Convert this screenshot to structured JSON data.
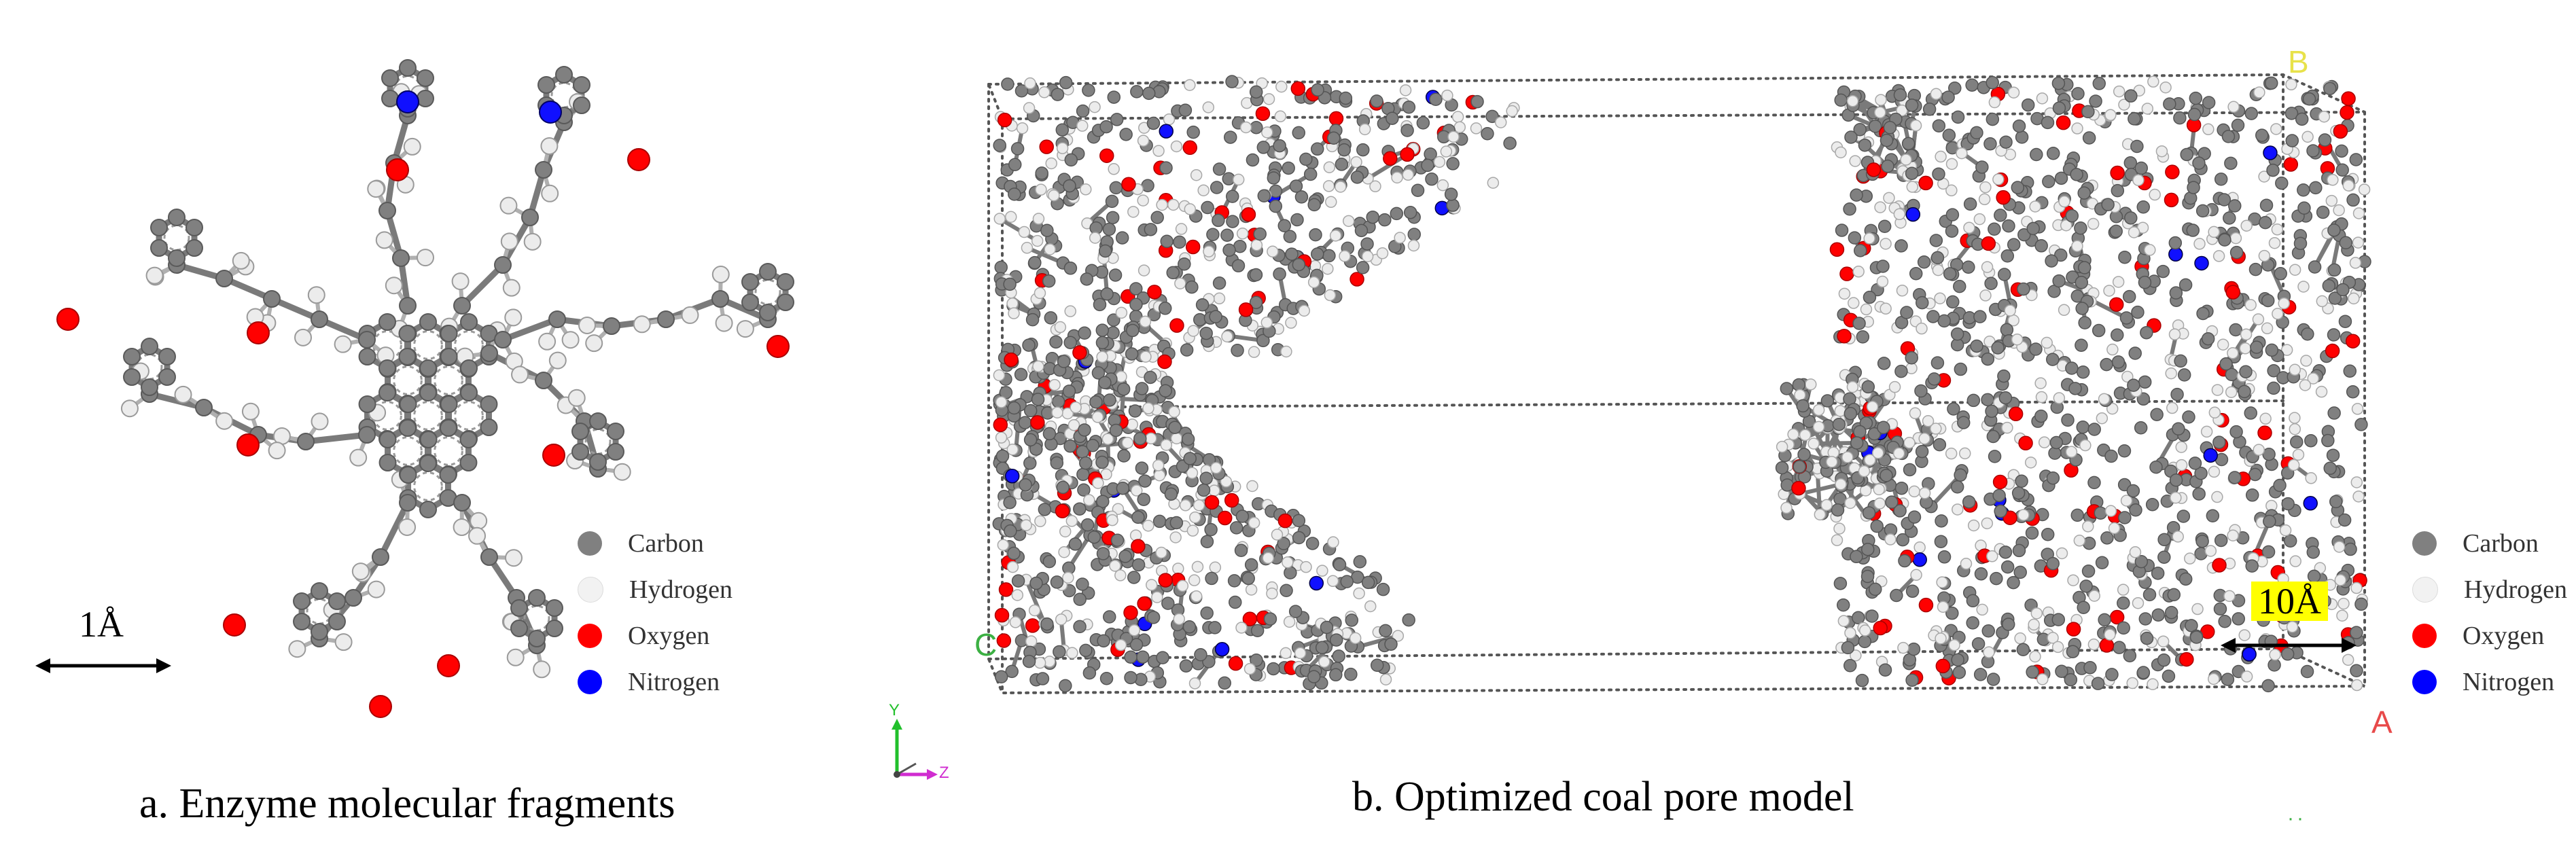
{
  "panel_a": {
    "caption": "a. Enzyme molecular fragments",
    "scale_label": "1Å"
  },
  "panel_b": {
    "caption": "b. Optimized coal pore model",
    "scale_label": "10Å",
    "corner_labels": {
      "top_right": "B",
      "bottom_right": "A",
      "left": "C"
    },
    "axis_labels": {
      "y": "Y",
      "z": "Z"
    }
  },
  "legend": [
    {
      "label": "Carbon",
      "color": "#808080"
    },
    {
      "label": "Hydrogen",
      "color": "#f2f2f2"
    },
    {
      "label": "Oxygen",
      "color": "#ff0000"
    },
    {
      "label": "Nitrogen",
      "color": "#0000ff"
    }
  ],
  "colors": {
    "carbon": "#808080",
    "hydrogen": "#ececec",
    "oxygen": "#ff0000",
    "nitrogen": "#1010ff",
    "bond": "#7a7a7a"
  }
}
